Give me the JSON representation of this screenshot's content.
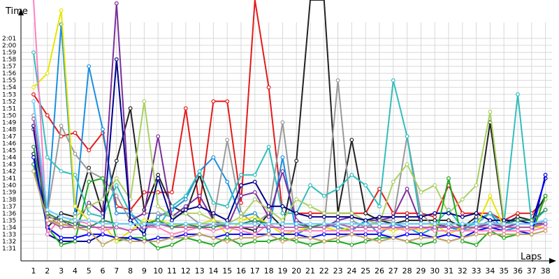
{
  "chart_data": {
    "type": "line",
    "title": "",
    "xlabel": "Laps",
    "ylabel": "Time",
    "x": [
      1,
      2,
      3,
      4,
      5,
      6,
      7,
      8,
      9,
      10,
      11,
      12,
      13,
      14,
      15,
      16,
      17,
      18,
      19,
      20,
      21,
      22,
      23,
      24,
      25,
      26,
      27,
      28,
      29,
      30,
      31,
      32,
      33,
      34,
      35,
      36,
      37,
      38
    ],
    "y_ticks": [
      "1:31",
      "1:32",
      "1:33",
      "1:34",
      "1:35",
      "1:36",
      "1:37",
      "1:38",
      "1:39",
      "1:40",
      "1:41",
      "1:42",
      "1:43",
      "1:44",
      "1:45",
      "1:46",
      "1:47",
      "1:48",
      "1:49",
      "1:50",
      "1:51",
      "1:52",
      "1:53",
      "1:54",
      "1:55",
      "1:56",
      "1:57",
      "1:58",
      "1:59",
      "2:00",
      "2:01"
    ],
    "ylim_seconds": [
      90,
      122
    ],
    "grid": true,
    "legend": "none",
    "series": [
      {
        "color": "#e31a1c",
        "values": [
          113,
          110,
          107,
          107.5,
          105,
          107.5,
          97,
          96.5,
          99,
          99,
          99,
          111,
          97,
          112,
          112,
          97.5,
          130,
          114,
          96,
          96,
          96,
          96,
          96,
          96,
          96,
          99.5,
          96,
          96,
          96,
          95.5,
          100,
          96,
          96,
          96,
          95,
          96,
          96,
          98
        ]
      },
      {
        "color": "#222222",
        "values": [
          104.5,
          94,
          96,
          95.5,
          102.5,
          96,
          103.5,
          111,
          96.5,
          101.5,
          97,
          96,
          101.5,
          95,
          94,
          94,
          93.5,
          96,
          94,
          103.5,
          130,
          130,
          96,
          106.5,
          96,
          95,
          94.5,
          95,
          95,
          95,
          95,
          94,
          95.5,
          109,
          94.5,
          95.5,
          95,
          98.5
        ]
      },
      {
        "color": "#1a8fe0",
        "values": [
          103,
          96,
          123,
          96,
          117,
          108,
          96,
          96,
          93.5,
          95.5,
          96.5,
          98,
          102,
          104,
          100.5,
          95.5,
          96,
          93.5,
          104,
          93,
          94,
          94.5,
          94,
          93.5,
          95,
          93,
          94.5,
          94,
          93,
          94,
          94,
          93.5,
          95,
          96,
          93.5,
          94,
          94,
          95
        ]
      },
      {
        "color": "#9a9a9a",
        "values": [
          110,
          96,
          108.5,
          104.5,
          102,
          101,
          98.5,
          95,
          96,
          96,
          95.5,
          96,
          94.5,
          95,
          106.5,
          96,
          94.5,
          96,
          109,
          94,
          94,
          94,
          115,
          95,
          94,
          95,
          95,
          107,
          96,
          94,
          94.5,
          93.5,
          94,
          95,
          94,
          94,
          94,
          95
        ]
      },
      {
        "color": "#33bdbd",
        "values": [
          119,
          104,
          102,
          101.5,
          96,
          95.5,
          100,
          96,
          94.5,
          94,
          97,
          98.5,
          102,
          97.5,
          97,
          101.5,
          101.5,
          105.5,
          96,
          96,
          100,
          98.5,
          99.5,
          101.5,
          100,
          97,
          115,
          107,
          94.5,
          94.5,
          96.5,
          94,
          94.5,
          96,
          94.5,
          113,
          94.5,
          96.5
        ]
      },
      {
        "color": "#7b2f9a",
        "values": [
          108,
          95.5,
          95,
          94,
          97.5,
          96,
          126,
          95,
          96,
          107,
          95.5,
          97,
          98.5,
          95,
          94,
          98.5,
          99,
          95.5,
          102,
          95,
          94,
          94,
          95,
          95.5,
          95,
          95,
          95.5,
          99.5,
          94.5,
          94.5,
          94,
          94,
          94,
          94.5,
          94,
          94.5,
          94.5,
          94.5
        ]
      },
      {
        "color": "#a9d162",
        "values": [
          103,
          96,
          94,
          95.5,
          97,
          98,
          101,
          98,
          112,
          97,
          95.5,
          96,
          96,
          95,
          94.5,
          95.5,
          98,
          96.5,
          95,
          98,
          97,
          96,
          96,
          96,
          95,
          94.5,
          100.5,
          103,
          99,
          100,
          96,
          98,
          100,
          110.5,
          95,
          95,
          95,
          98
        ]
      },
      {
        "color": "#00008b",
        "values": [
          108.5,
          93,
          92,
          92,
          92,
          93,
          118,
          95,
          93,
          101,
          95,
          96.5,
          97,
          96,
          95,
          100,
          100.5,
          97,
          97,
          96,
          95.5,
          95.5,
          95.5,
          95.5,
          95,
          95.5,
          95.5,
          95.5,
          95.5,
          96,
          96,
          95.5,
          96,
          95,
          95,
          95,
          94.5,
          101
        ]
      },
      {
        "color": "#1fa81f",
        "values": [
          103,
          94,
          91.5,
          92,
          100.5,
          101,
          92,
          92.5,
          92.5,
          91,
          91.5,
          92.5,
          92,
          91.5,
          92.5,
          91.5,
          92,
          92,
          92.5,
          92,
          91.5,
          92,
          92,
          91.5,
          92,
          92.5,
          92.5,
          92,
          91.5,
          92,
          101,
          92,
          91.5,
          93.5,
          92.5,
          93,
          93,
          98.5
        ]
      },
      {
        "color": "#e6e600",
        "values": [
          114,
          116,
          125,
          97,
          95,
          94.5,
          92,
          93.5,
          95,
          95,
          94.5,
          94,
          94.5,
          95,
          93,
          95,
          95.5,
          94.5,
          93,
          93.5,
          94,
          94,
          93.5,
          94,
          94,
          94,
          93.5,
          94,
          93.5,
          94.5,
          93,
          94,
          94,
          98.5,
          94,
          94,
          94,
          94
        ]
      },
      {
        "color": "#0000ff",
        "values": [
          104,
          94,
          92.5,
          92.5,
          93,
          93,
          92.5,
          92.5,
          92,
          92.5,
          92.5,
          93,
          93,
          92.5,
          93,
          93,
          93,
          93,
          93,
          93,
          92.5,
          93,
          93,
          93,
          93,
          93,
          92.5,
          93,
          93,
          92.5,
          93,
          92.5,
          93.5,
          94,
          93.5,
          93.5,
          93,
          101.5
        ]
      },
      {
        "color": "#ff80c0",
        "values": [
          130,
          93,
          95.5,
          95,
          94.5,
          93.5,
          94,
          93.5,
          94,
          94,
          93,
          93.5,
          94,
          93.5,
          94,
          93.5,
          93,
          94.5,
          93.5,
          93.5,
          93.5,
          93.5,
          93.5,
          93.5,
          93.5,
          93.5,
          94,
          93.5,
          94,
          93.5,
          93.5,
          93.5,
          93.5,
          93.5,
          93.5,
          93.5,
          93.5,
          94
        ]
      },
      {
        "color": "#b35ab3",
        "values": [
          109.5,
          95,
          94,
          94,
          94,
          94,
          94,
          93.5,
          94,
          94.5,
          94,
          94,
          94,
          94.5,
          94,
          94,
          94,
          94,
          94,
          94,
          94,
          94,
          94.5,
          94,
          94,
          94,
          94,
          94,
          94,
          94,
          94,
          94,
          94,
          94,
          94,
          94,
          94,
          94.5
        ]
      },
      {
        "color": "#2e8b57",
        "values": [
          105.5,
          96,
          95,
          94.5,
          94,
          95,
          94.5,
          94.5,
          94.5,
          95,
          94,
          94.5,
          94,
          94,
          94.5,
          94.5,
          95,
          94.5,
          94.5,
          94.5,
          94,
          94.5,
          94.5,
          94.5,
          94.5,
          94.5,
          94.5,
          94.5,
          94.5,
          94.5,
          94.5,
          94.5,
          94.5,
          94.5,
          94.5,
          95,
          95,
          96.5
        ]
      },
      {
        "color": "#c0a060",
        "values": [
          102,
          95,
          94.5,
          94,
          93.5,
          91.5,
          92.5,
          92,
          92,
          92,
          92.5,
          92.5,
          93,
          92.5,
          92,
          92.5,
          92.5,
          93,
          92,
          92.5,
          92.5,
          92,
          92.5,
          93,
          92.5,
          92,
          92.5,
          92,
          92.5,
          92.5,
          92,
          92.5,
          93,
          93,
          93,
          93,
          93,
          93.5
        ]
      },
      {
        "color": "#66ccff",
        "values": [
          112,
          96.5,
          95.5,
          95,
          95,
          94.5,
          94.5,
          94.5,
          94.5,
          94.5,
          94.5,
          94.5,
          94.5,
          94.5,
          94.5,
          94.5,
          94.5,
          94.5,
          94.5,
          94.5,
          94.5,
          94.5,
          94.5,
          94.5,
          94.5,
          94.5,
          94.5,
          94.5,
          94.5,
          94.5,
          94.5,
          94.5,
          94.5,
          94.5,
          94.5,
          94.5,
          94.5,
          95
        ]
      }
    ]
  }
}
